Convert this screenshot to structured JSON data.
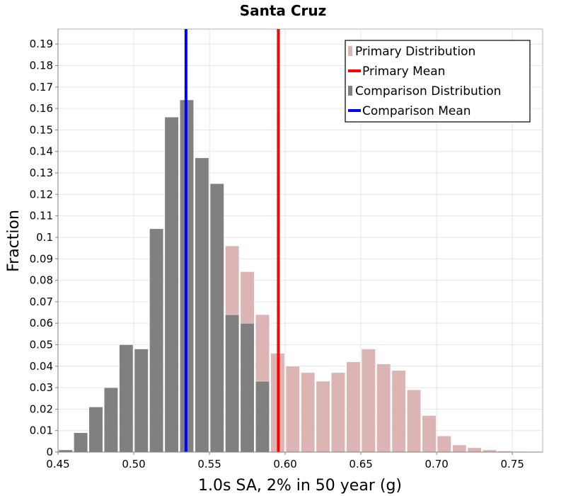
{
  "chart_data": {
    "type": "bar",
    "title": "Santa Cruz",
    "xlabel": "1.0s SA, 2% in 50 year (g)",
    "ylabel": "Fraction",
    "xlim": [
      0.45,
      0.77
    ],
    "ylim": [
      0,
      0.197
    ],
    "bin_width": 0.01,
    "x_ticks": [
      "0.45",
      "0.50",
      "0.55",
      "0.60",
      "0.65",
      "0.70",
      "0.75"
    ],
    "y_ticks": [
      "0",
      "0.01",
      "0.02",
      "0.03",
      "0.04",
      "0.05",
      "0.06",
      "0.07",
      "0.08",
      "0.09",
      "0.1",
      "0.11",
      "0.12",
      "0.13",
      "0.14",
      "0.15",
      "0.16",
      "0.17",
      "0.18",
      "0.19"
    ],
    "grid": true,
    "legend_position": "top-right",
    "series": [
      {
        "name": "Primary Distribution",
        "color": "#dcb4b4",
        "bin_centers": [
          0.565,
          0.575,
          0.585,
          0.595,
          0.605,
          0.615,
          0.625,
          0.635,
          0.645,
          0.655,
          0.665,
          0.675,
          0.685,
          0.695,
          0.705,
          0.715,
          0.725,
          0.735,
          0.745,
          0.755,
          0.765
        ],
        "values": [
          0.096,
          0.084,
          0.064,
          0.046,
          0.04,
          0.037,
          0.033,
          0.037,
          0.042,
          0.048,
          0.041,
          0.038,
          0.029,
          0.017,
          0.0075,
          0.0033,
          0.002,
          0.001,
          0.0005,
          0.0003,
          0.0002
        ]
      },
      {
        "name": "Comparison Distribution",
        "color": "#808080",
        "bin_centers": [
          0.455,
          0.465,
          0.475,
          0.485,
          0.495,
          0.505,
          0.515,
          0.525,
          0.535,
          0.545,
          0.555,
          0.565,
          0.575,
          0.585
        ],
        "values": [
          0.001,
          0.009,
          0.021,
          0.03,
          0.05,
          0.048,
          0.104,
          0.156,
          0.164,
          0.137,
          0.125,
          0.064,
          0.06,
          0.033
        ]
      }
    ],
    "means": [
      {
        "name": "Primary Mean",
        "value": 0.5955,
        "color": "#ff0000"
      },
      {
        "name": "Comparison Mean",
        "value": 0.5345,
        "color": "#0000ff"
      }
    ],
    "legend": [
      {
        "label": "Primary Distribution",
        "kind": "bar",
        "color": "#dcb4b4"
      },
      {
        "label": "Primary Mean",
        "kind": "line",
        "color": "#ff0000"
      },
      {
        "label": "Comparison Distribution",
        "kind": "bar",
        "color": "#808080"
      },
      {
        "label": "Comparison Mean",
        "kind": "line",
        "color": "#0000ff"
      }
    ]
  }
}
